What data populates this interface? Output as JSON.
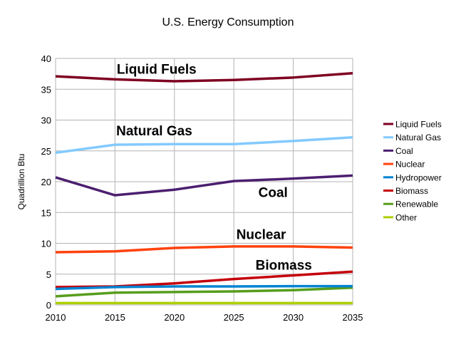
{
  "chart_data": {
    "type": "line",
    "title": "U.S. Energy Consumption",
    "xlabel": "",
    "ylabel": "Quadrillion Btu",
    "x": [
      2010,
      2015,
      2020,
      2025,
      2030,
      2035
    ],
    "xlim": [
      2010,
      2035
    ],
    "ylim": [
      0,
      40
    ],
    "yticks": [
      0,
      5,
      10,
      15,
      20,
      25,
      30,
      35,
      40
    ],
    "grid": true,
    "legend": "right",
    "series": [
      {
        "name": "Liquid Fuels",
        "color": "#7e0021",
        "values": [
          37.1,
          36.6,
          36.3,
          36.5,
          36.9,
          37.6
        ]
      },
      {
        "name": "Natural Gas",
        "color": "#83caff",
        "values": [
          24.7,
          26.0,
          26.1,
          26.1,
          26.6,
          27.2
        ]
      },
      {
        "name": "Coal",
        "color": "#4b1f6f",
        "values": [
          20.7,
          17.8,
          18.7,
          20.1,
          20.5,
          21.0
        ]
      },
      {
        "name": "Nuclear",
        "color": "#ff420e",
        "values": [
          8.55,
          8.7,
          9.25,
          9.5,
          9.5,
          9.3
        ]
      },
      {
        "name": "Hydropower",
        "color": "#0084d1",
        "values": [
          2.6,
          2.9,
          3.0,
          3.0,
          3.05,
          3.05
        ]
      },
      {
        "name": "Biomass",
        "color": "#c5000b",
        "values": [
          2.9,
          3.0,
          3.5,
          4.2,
          4.8,
          5.4
        ]
      },
      {
        "name": "Renewable",
        "color": "#579d1c",
        "values": [
          1.4,
          2.0,
          2.1,
          2.2,
          2.4,
          2.8
        ]
      },
      {
        "name": "Other",
        "color": "#aecf00",
        "values": [
          0.3,
          0.3,
          0.3,
          0.3,
          0.3,
          0.3
        ]
      }
    ],
    "annotations": [
      {
        "text": "Liquid Fuels",
        "x": 2018.5,
        "y": 38.2
      },
      {
        "text": "Natural Gas",
        "x": 2018.3,
        "y": 28.2
      },
      {
        "text": "Coal",
        "x": 2028.3,
        "y": 18.2
      },
      {
        "text": "Nuclear",
        "x": 2027.3,
        "y": 11.4
      },
      {
        "text": "Biomass",
        "x": 2029.2,
        "y": 6.4
      }
    ]
  }
}
